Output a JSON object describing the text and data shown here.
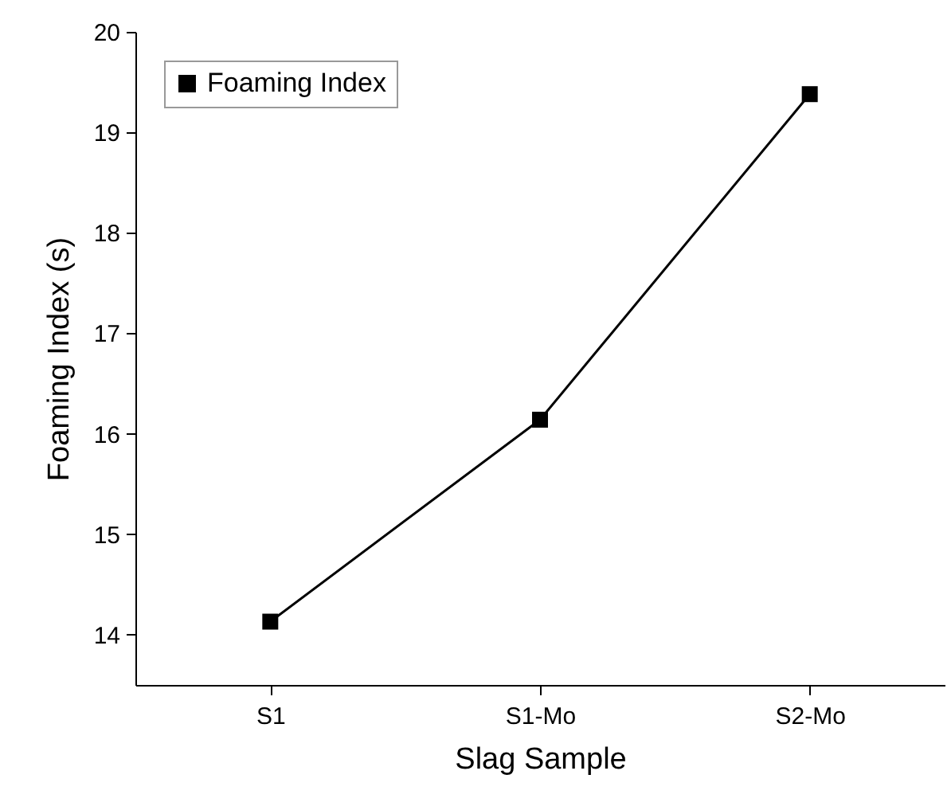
{
  "chart_data": {
    "type": "line",
    "xlabel": "Slag Sample",
    "ylabel": "Foaming Index (s)",
    "categories": [
      "S1",
      "S1-Mo",
      "S2-Mo"
    ],
    "series": [
      {
        "name": "Foaming Index",
        "color": "#000000",
        "values": [
          14.13,
          16.14,
          19.38
        ]
      }
    ],
    "ylim": [
      13.5,
      20
    ],
    "yticks": [
      14,
      15,
      16,
      17,
      18,
      19,
      20
    ],
    "grid": false,
    "legend": "top left",
    "marker": "square",
    "line_style": "solid"
  }
}
